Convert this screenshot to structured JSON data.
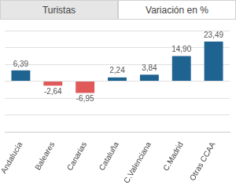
{
  "tabs": [
    {
      "label": "Turistas",
      "selected": false
    },
    {
      "label": "Variación en %",
      "selected": true
    }
  ],
  "chart_data": {
    "type": "bar",
    "categories": [
      "Andalucía",
      "Baleares",
      "Canarias",
      "Cataluña",
      "C.Valenciana",
      "C.Madrid",
      "Otras CCAA"
    ],
    "values": [
      6.39,
      -2.64,
      -6.95,
      2.24,
      3.84,
      14.9,
      23.49
    ],
    "value_labels": [
      "6,39",
      "-2,64",
      "-6,95",
      "2,24",
      "3,84",
      "14,90",
      "23,49"
    ],
    "colors": [
      "#1f6391",
      "#e05a5a",
      "#e05a5a",
      "#1f6391",
      "#1f6391",
      "#1f6391",
      "#1f6391"
    ],
    "ylim": [
      -30,
      30
    ],
    "yticks": [
      -30,
      -20,
      -10,
      0,
      10,
      20,
      30
    ],
    "grid": true,
    "data_labels": true,
    "tick_labels": "x"
  }
}
